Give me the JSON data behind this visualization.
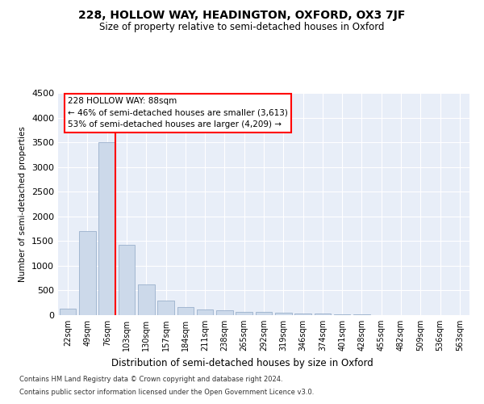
{
  "title": "228, HOLLOW WAY, HEADINGTON, OXFORD, OX3 7JF",
  "subtitle": "Size of property relative to semi-detached houses in Oxford",
  "xlabel": "Distribution of semi-detached houses by size in Oxford",
  "ylabel": "Number of semi-detached properties",
  "categories": [
    "22sqm",
    "49sqm",
    "76sqm",
    "103sqm",
    "130sqm",
    "157sqm",
    "184sqm",
    "211sqm",
    "238sqm",
    "265sqm",
    "292sqm",
    "319sqm",
    "346sqm",
    "374sqm",
    "401sqm",
    "428sqm",
    "455sqm",
    "482sqm",
    "509sqm",
    "536sqm",
    "563sqm"
  ],
  "values": [
    130,
    1700,
    3500,
    1420,
    620,
    290,
    170,
    110,
    100,
    70,
    60,
    50,
    30,
    25,
    15,
    10,
    8,
    5,
    3,
    2,
    0
  ],
  "bar_color": "#ccd9ea",
  "bar_edge_color": "#9ab0cc",
  "red_line_index": 2,
  "annotation_line1": "228 HOLLOW WAY: 88sqm",
  "annotation_line2": "← 46% of semi-detached houses are smaller (3,613)",
  "annotation_line3": "53% of semi-detached houses are larger (4,209) →",
  "ylim": [
    0,
    4500
  ],
  "yticks": [
    0,
    500,
    1000,
    1500,
    2000,
    2500,
    3000,
    3500,
    4000,
    4500
  ],
  "background_color": "#e8eef8",
  "grid_color": "#ffffff",
  "footer_line1": "Contains HM Land Registry data © Crown copyright and database right 2024.",
  "footer_line2": "Contains public sector information licensed under the Open Government Licence v3.0."
}
